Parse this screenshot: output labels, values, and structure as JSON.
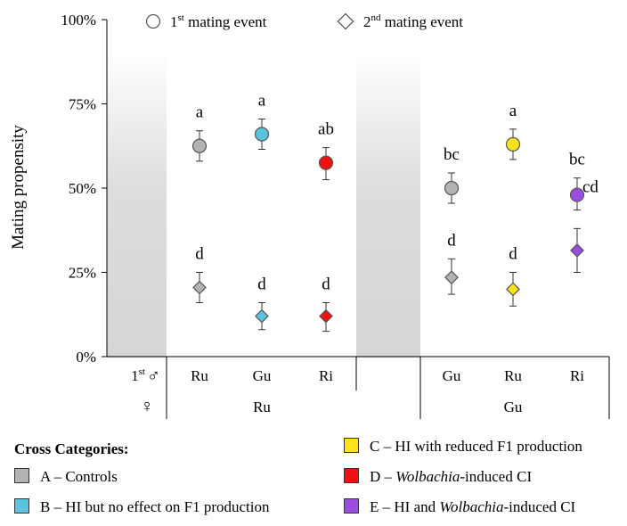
{
  "chart_data": {
    "type": "scatter",
    "ylabel": "Mating propensity",
    "ylim": [
      0,
      100
    ],
    "yticks": [
      "0%",
      "25%",
      "50%",
      "75%",
      "100%"
    ],
    "series_legend": [
      {
        "label": "1st mating event",
        "marker": "circle",
        "base": "1",
        "sup": "st",
        "rest": " mating event"
      },
      {
        "label": "2nd mating event",
        "marker": "diamond",
        "base": "2",
        "sup": "nd",
        "rest": " mating event"
      }
    ],
    "axis_rows": {
      "male_label_base": "1",
      "male_label_sup": "st",
      "male_symbol": "♂",
      "female_symbol": "♀",
      "male": [
        "Ru",
        "Gu",
        "Ri",
        "Gu",
        "Ru",
        "Ri"
      ],
      "female_groups": [
        "Ru",
        "Gu"
      ]
    },
    "points": [
      {
        "male": "Ru",
        "female": "Ru",
        "category": "A",
        "first": 62.5,
        "first_err": [
          58,
          67
        ],
        "first_letter": "a",
        "second": 20.5,
        "second_err": [
          16,
          25
        ],
        "second_letter": "d"
      },
      {
        "male": "Gu",
        "female": "Ru",
        "category": "B",
        "first": 66,
        "first_err": [
          61.5,
          70.5
        ],
        "first_letter": "a",
        "second": 12,
        "second_err": [
          8,
          16
        ],
        "second_letter": "d"
      },
      {
        "male": "Ri",
        "female": "Ru",
        "category": "D",
        "first": 57.5,
        "first_err": [
          52.5,
          62
        ],
        "first_letter": "ab",
        "second": 12,
        "second_err": [
          7.5,
          16
        ],
        "second_letter": "d"
      },
      {
        "male": "Gu",
        "female": "Gu",
        "category": "A",
        "first": 50,
        "first_err": [
          45.5,
          54.5
        ],
        "first_letter": "bc",
        "second": 23.5,
        "second_err": [
          18.5,
          29
        ],
        "second_letter": "d"
      },
      {
        "male": "Ru",
        "female": "Gu",
        "category": "C",
        "first": 63,
        "first_err": [
          58.5,
          67.5
        ],
        "first_letter": "a",
        "second": 20,
        "second_err": [
          15,
          25
        ],
        "second_letter": "d"
      },
      {
        "male": "Ri",
        "female": "Gu",
        "category": "E",
        "first": 48,
        "first_err": [
          43.5,
          53
        ],
        "first_letter": "bc",
        "second": 31.5,
        "second_err": [
          25,
          38
        ],
        "second_letter": "cd"
      }
    ],
    "categories_legend": {
      "title": "Cross Categories:",
      "items": [
        {
          "code": "A",
          "pre": "A – Controls",
          "em": "",
          "post": "",
          "color": "#b3b3b3"
        },
        {
          "code": "B",
          "pre": "B – HI but no effect on F1 production",
          "em": "",
          "post": "",
          "color": "#5bc2e0"
        },
        {
          "code": "C",
          "pre": "C – HI with reduced F1 production",
          "em": "",
          "post": "",
          "color": "#ffe21a"
        },
        {
          "code": "D",
          "pre": "D – ",
          "em": "Wolbachia",
          "post": "-induced CI",
          "color": "#ee1111"
        },
        {
          "code": "E",
          "pre": "E – HI and ",
          "em": "Wolbachia",
          "post": "-induced CI",
          "color": "#9b4fe0"
        }
      ]
    }
  }
}
